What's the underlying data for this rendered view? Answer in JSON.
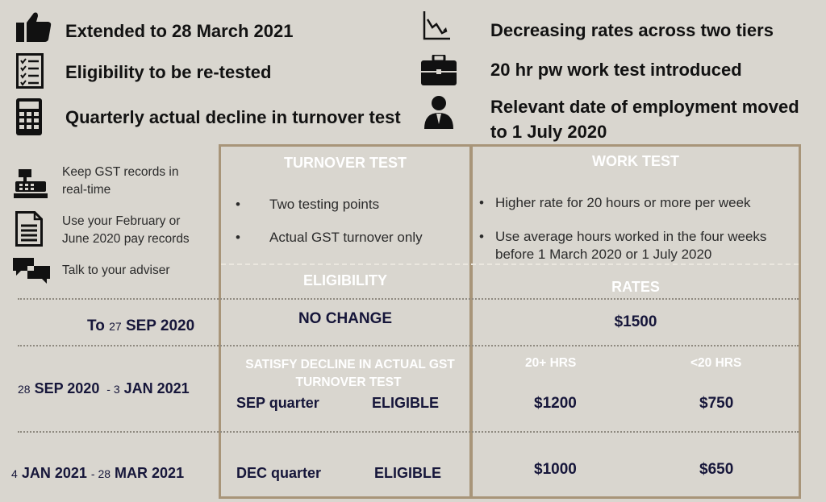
{
  "features": {
    "extended": "Extended to 28 March 2021",
    "eligibility": "Eligibility to be re-tested",
    "quarterly": "Quarterly actual decline in turnover test",
    "decreasing": "Decreasing rates across two tiers",
    "work_test": "20 hr pw work test introduced",
    "relevant_line1": "Relevant date of employment moved",
    "relevant_line2": "to 1 July 2020"
  },
  "tips": {
    "gst_line1": "Keep GST records in",
    "gst_line2": "real-time",
    "pay_line1": "Use your February or",
    "pay_line2": "June  2020 pay records",
    "adviser": "Talk to your adviser"
  },
  "turnover_test": {
    "header": "TURNOVER TEST",
    "bullets": [
      "Two testing points",
      "Actual GST turnover only"
    ]
  },
  "work_test": {
    "header": "WORK TEST",
    "bullet1": "Higher rate for 20 hours or more per week",
    "bullet2_line1": "Use average hours worked in the four weeks",
    "bullet2_line2": "before 1 March 2020 or 1 July 2020"
  },
  "table": {
    "eligibility_header": "ELIGIBILITY",
    "rates_header": "RATES",
    "row1": {
      "to": "To",
      "day": "27",
      "month_year": "SEP 2020",
      "eligibility": "NO CHANGE",
      "rate": "$1500"
    },
    "row2": {
      "from_day": "28",
      "from_month_year": "SEP 2020",
      "sep": "-",
      "to_day": "3",
      "to_month_year": "JAN 2021",
      "eligibility_heading_line1": "SATISFY DECLINE IN ACTUAL GST",
      "eligibility_heading_line2": "TURNOVER TEST",
      "quarter": "SEP quarter",
      "status": "ELIGIBLE",
      "tier_high_label": "20+ HRS",
      "tier_low_label": "<20 HRS",
      "rate_high": "$1200",
      "rate_low": "$750"
    },
    "row3": {
      "from_day": "4",
      "from_month_year": "JAN 2021",
      "sep": "-",
      "to_day": "28",
      "to_month_year": "MAR 2021",
      "quarter": "DEC quarter",
      "status": "ELIGIBLE",
      "rate_high": "$1000",
      "rate_low": "$650"
    }
  },
  "icons": [
    "thumbs-up-icon",
    "checklist-icon",
    "calculator-icon",
    "declining-chart-icon",
    "briefcase-icon",
    "employee-icon",
    "cash-register-icon",
    "document-icon",
    "chat-bubbles-icon"
  ],
  "colors": {
    "background": "#d9d6cf",
    "box_border": "#a89579",
    "navy_text": "#16163a",
    "header_text": "#ffffff"
  }
}
